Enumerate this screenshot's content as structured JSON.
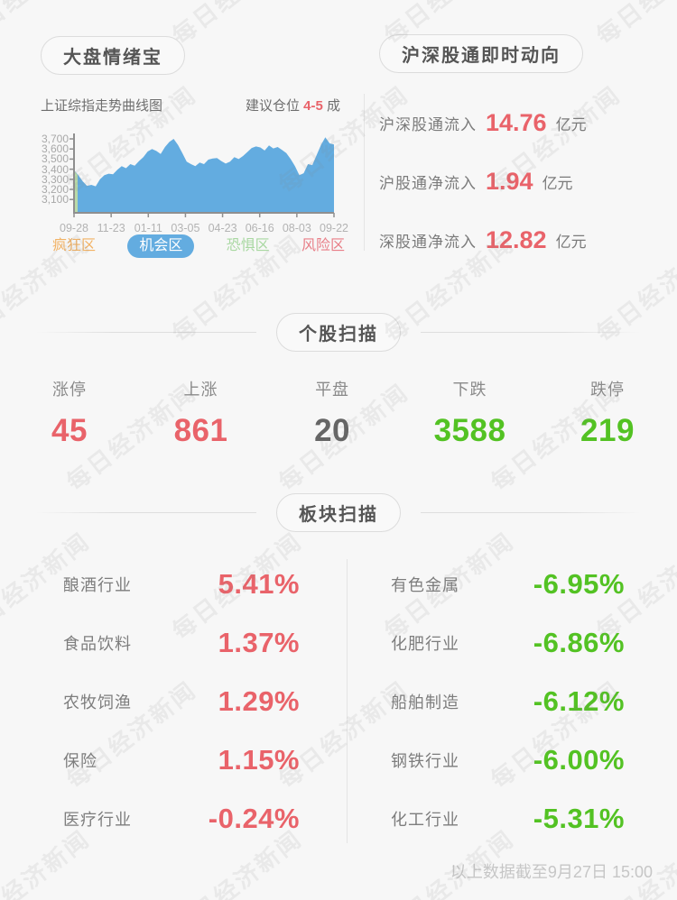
{
  "meta": {
    "accent_red": "#e9636a",
    "accent_green": "#53c223",
    "accent_blue": "#63ace0",
    "background": "#f7f7f7"
  },
  "sentiment": {
    "title": "大盘情绪宝",
    "chart_caption": "上证综指走势曲线图",
    "position_prefix": "建议仓位 ",
    "position_value": "4-5",
    "position_suffix": " 成",
    "legend": [
      {
        "label": "疯狂区",
        "color": "#f2b264",
        "active": false
      },
      {
        "label": "机会区",
        "color": "#63ace0",
        "active": true
      },
      {
        "label": "恐惧区",
        "color": "#a9d8a2",
        "active": false
      },
      {
        "label": "风险区",
        "color": "#e87e87",
        "active": false
      }
    ]
  },
  "chart_data": {
    "type": "area",
    "title": "上证综指走势曲线图",
    "x_tick_labels": [
      "09-28",
      "11-23",
      "01-11",
      "03-05",
      "04-23",
      "06-16",
      "08-03",
      "09-22"
    ],
    "y_tick_labels": [
      "3,700",
      "3,600",
      "3,500",
      "3,400",
      "3,300",
      "3,200",
      "3,100"
    ],
    "y_tick_values": [
      3700,
      3600,
      3500,
      3400,
      3300,
      3200,
      3100
    ],
    "ylim": [
      3100,
      3700
    ],
    "grid": false,
    "area_color": "#63ace0",
    "start_segment_color": "#b9daa9",
    "values": [
      3390,
      3340,
      3280,
      3235,
      3245,
      3230,
      3300,
      3340,
      3355,
      3350,
      3395,
      3430,
      3410,
      3450,
      3435,
      3480,
      3520,
      3575,
      3600,
      3580,
      3550,
      3620,
      3670,
      3700,
      3640,
      3560,
      3475,
      3450,
      3430,
      3465,
      3450,
      3495,
      3505,
      3510,
      3480,
      3455,
      3475,
      3520,
      3500,
      3530,
      3570,
      3610,
      3625,
      3615,
      3585,
      3635,
      3605,
      3620,
      3590,
      3560,
      3500,
      3430,
      3340,
      3360,
      3450,
      3440,
      3540,
      3640,
      3715,
      3655,
      3645
    ]
  },
  "connect": {
    "title": "沪深股通即时动向",
    "rows": [
      {
        "label": "沪深股通流入",
        "value": "14.76",
        "unit": "亿元"
      },
      {
        "label": "沪股通净流入",
        "value": "1.94",
        "unit": "亿元"
      },
      {
        "label": "深股通净流入",
        "value": "12.82",
        "unit": "亿元"
      }
    ]
  },
  "stocks": {
    "title": "个股扫描",
    "items": [
      {
        "label": "涨停",
        "value": "45",
        "color": "red"
      },
      {
        "label": "上涨",
        "value": "861",
        "color": "red"
      },
      {
        "label": "平盘",
        "value": "20",
        "color": "gray"
      },
      {
        "label": "下跌",
        "value": "3588",
        "color": "green"
      },
      {
        "label": "跌停",
        "value": "219",
        "color": "green"
      }
    ]
  },
  "sectors": {
    "title": "板块扫描",
    "left": [
      {
        "label": "酿酒行业",
        "value": "5.41%"
      },
      {
        "label": "食品饮料",
        "value": "1.37%"
      },
      {
        "label": "农牧饲渔",
        "value": "1.29%"
      },
      {
        "label": "保险",
        "value": "1.15%"
      },
      {
        "label": "医疗行业",
        "value": "-0.24%"
      }
    ],
    "right": [
      {
        "label": "有色金属",
        "value": "-6.95%"
      },
      {
        "label": "化肥行业",
        "value": "-6.86%"
      },
      {
        "label": "船舶制造",
        "value": "-6.12%"
      },
      {
        "label": "钢铁行业",
        "value": "-6.00%"
      },
      {
        "label": "化工行业",
        "value": "-5.31%"
      }
    ]
  },
  "footer": {
    "note": "以上数据截至9月27日 15:00"
  },
  "watermark": {
    "text": "每日经济新闻"
  }
}
